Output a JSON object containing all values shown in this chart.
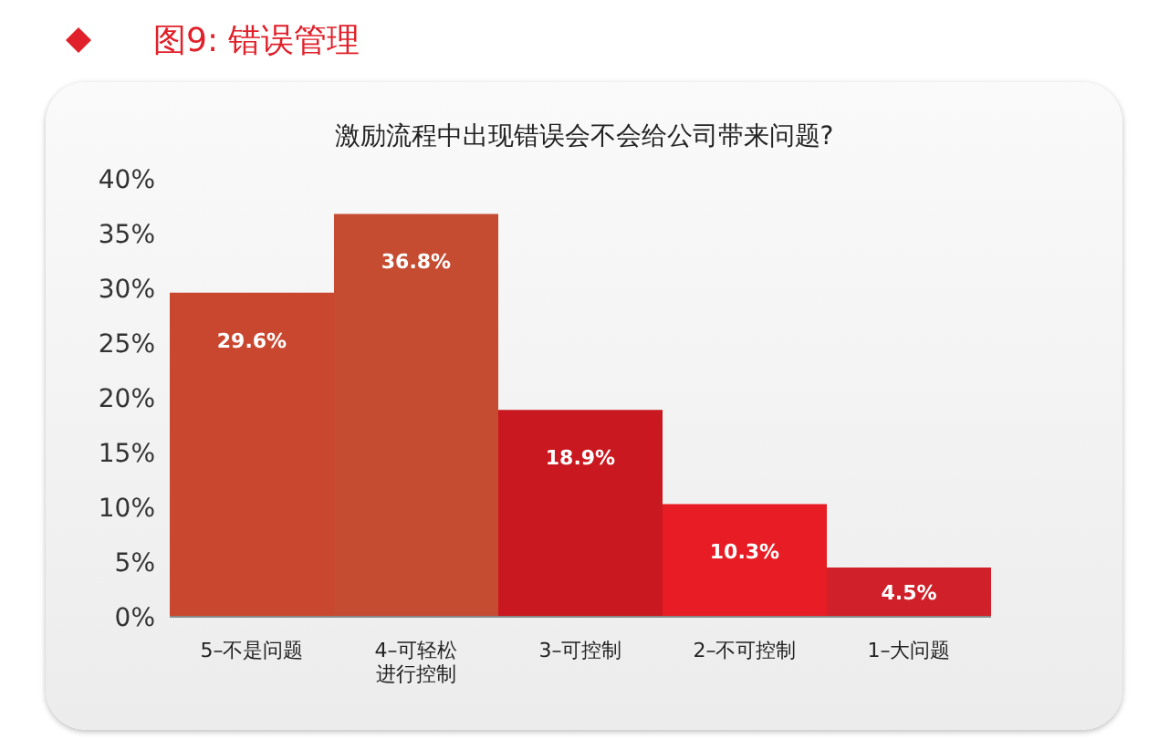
{
  "chart_data": {
    "type": "bar",
    "title": "图9: 错误管理",
    "subtitle": "激励流程中出现错误会不会给公司带来问题?",
    "categories": [
      "5–不是问题",
      "4–可轻松进行控制",
      "3–可控制",
      "2–不可控制",
      "1–大问题"
    ],
    "values": [
      29.6,
      36.8,
      18.9,
      10.3,
      4.5
    ],
    "colors": [
      "#c9472f",
      "#c54b31",
      "#c9181f",
      "#e81c24",
      "#d02029"
    ],
    "value_labels": [
      "29.6%",
      "36.8%",
      "18.9%",
      "10.3%",
      "4.5%"
    ],
    "ylim": [
      0,
      40
    ],
    "yticks": [
      {
        "value": 0,
        "label": "0%"
      },
      {
        "value": 5,
        "label": "5%"
      },
      {
        "value": 10,
        "label": "10%"
      },
      {
        "value": 15,
        "label": "15%"
      },
      {
        "value": 20,
        "label": "20%"
      },
      {
        "value": 25,
        "label": "25%"
      },
      {
        "value": 30,
        "label": "30%"
      },
      {
        "value": 35,
        "label": "35%"
      },
      {
        "value": 40,
        "label": "40%"
      }
    ],
    "grid": false,
    "legend": false
  }
}
